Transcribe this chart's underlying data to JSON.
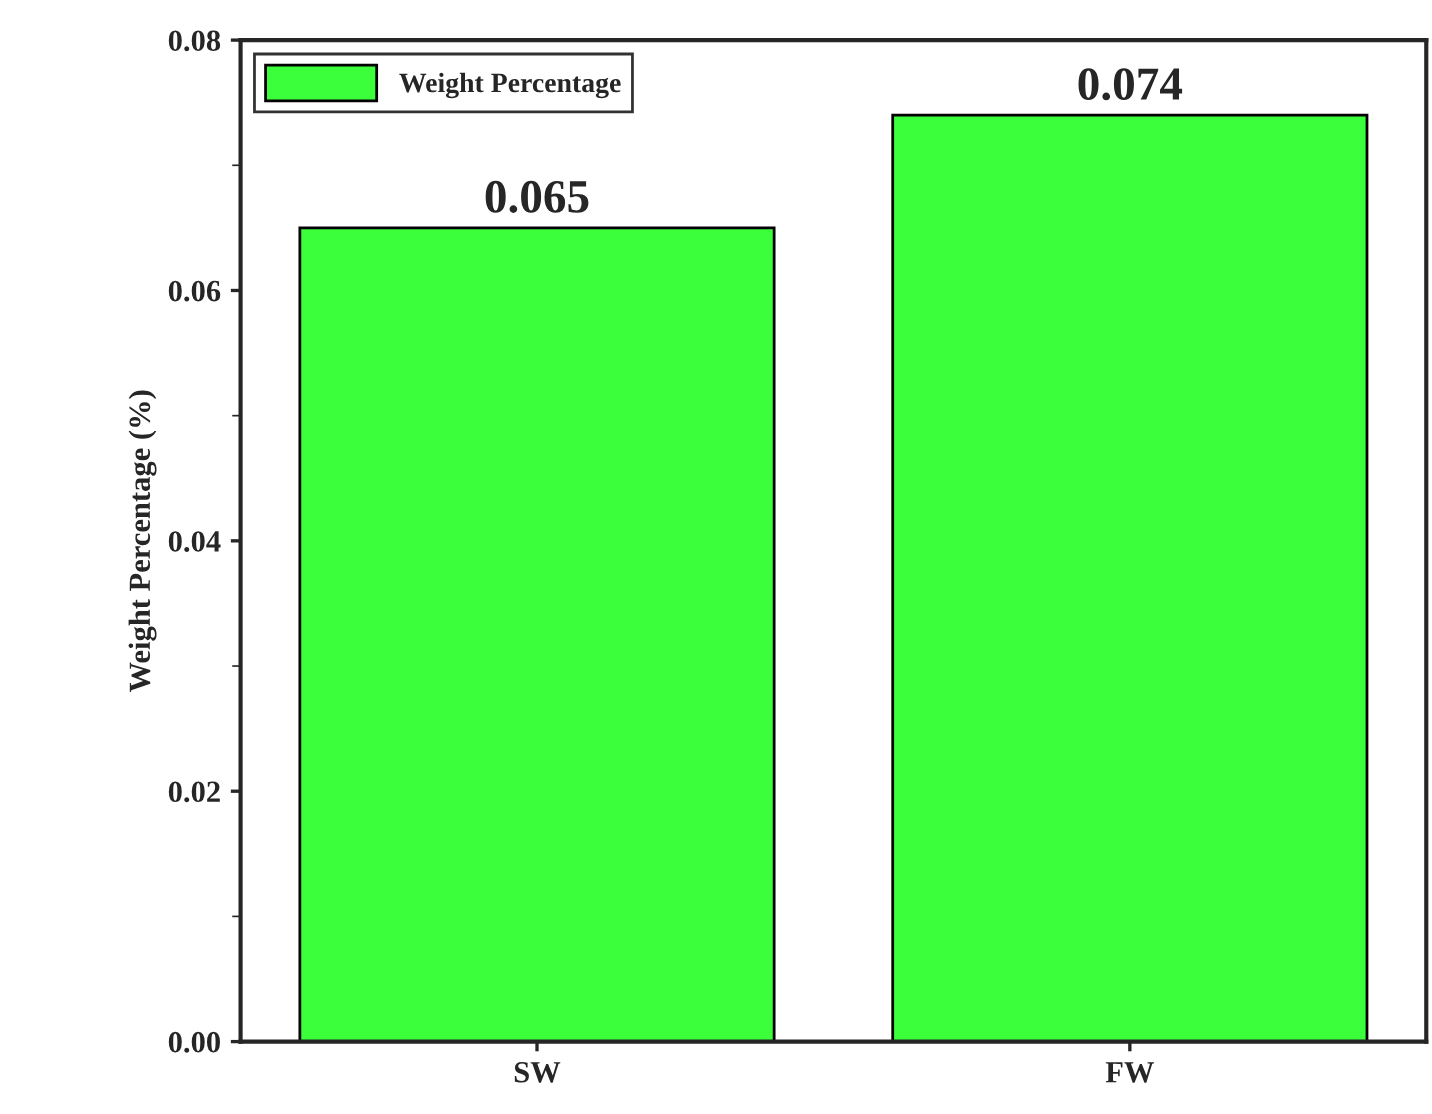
{
  "chart_data": {
    "type": "bar",
    "ylabel": "Weight Percentage (%)",
    "categories": [
      "SW",
      "FW"
    ],
    "series": [
      {
        "name": "Weight Percentage",
        "color": "#3cff3c",
        "values": [
          0.065,
          0.074
        ]
      }
    ],
    "ylim": [
      0,
      0.08
    ],
    "yticks": [
      {
        "value": 0,
        "label": "0.00"
      },
      {
        "value": 0.02,
        "label": "0.02"
      },
      {
        "value": 0.04,
        "label": "0.04"
      },
      {
        "value": 0.06,
        "label": "0.06"
      },
      {
        "value": 0.08,
        "label": "0.08"
      }
    ],
    "data_labels": true,
    "legend": "top left",
    "grid": false
  }
}
